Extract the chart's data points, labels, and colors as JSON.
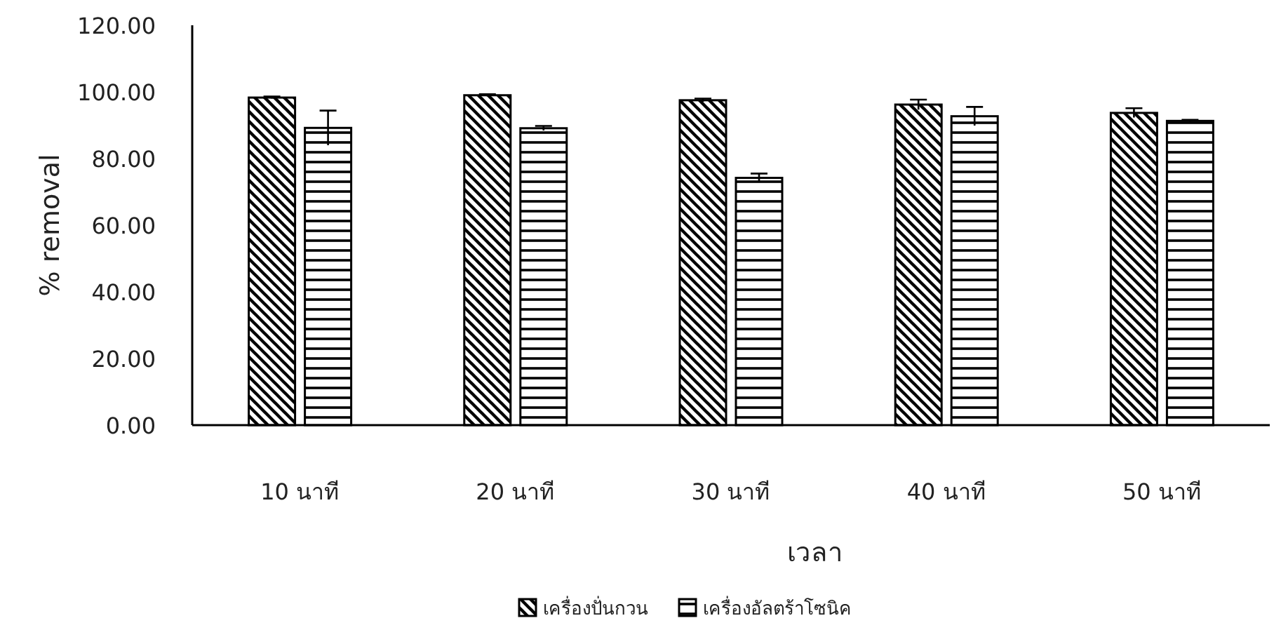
{
  "chart_data": {
    "type": "bar",
    "xlabel": "เวลา",
    "ylabel": "% removal",
    "categories": [
      "10 นาที",
      "20 นาที",
      "30 นาที",
      "40 นาที",
      "50 นาที"
    ],
    "series": [
      {
        "name": "เครื่องปั่นกวน",
        "color": "#000000",
        "values": [
          98.3,
          99.0,
          97.5,
          96.2,
          93.7
        ],
        "errors": [
          0.3,
          0.3,
          0.5,
          1.5,
          1.4
        ]
      },
      {
        "name": "เครื่องอัลตร้าโซนิค",
        "color": "#000000",
        "values": [
          89.2,
          89.1,
          74.2,
          92.7,
          91.3
        ],
        "errors": [
          5.2,
          0.7,
          1.3,
          2.8,
          0.3
        ]
      }
    ],
    "ylim": [
      0,
      120
    ],
    "yticks": [
      {
        "value": 0,
        "label": "0.00"
      },
      {
        "value": 20,
        "label": "20.00"
      },
      {
        "value": 40,
        "label": "40.00"
      },
      {
        "value": 60,
        "label": "60.00"
      },
      {
        "value": 80,
        "label": "80.00"
      },
      {
        "value": 100,
        "label": "100.00"
      },
      {
        "value": 120,
        "label": "120.00"
      }
    ],
    "grid": false,
    "legend": "bottom"
  }
}
